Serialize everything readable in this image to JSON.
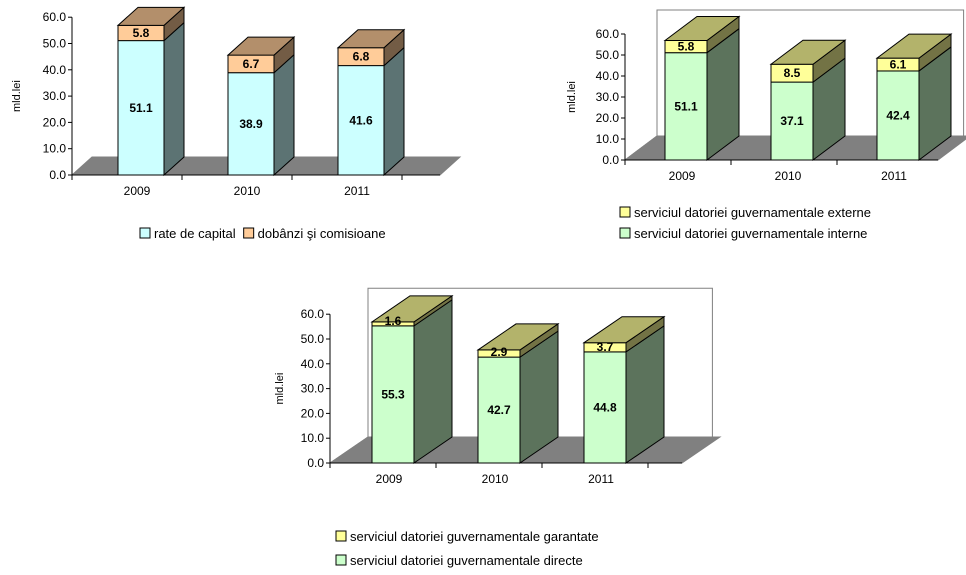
{
  "chart_data": [
    {
      "type": "bar",
      "stacked": true,
      "categories": [
        "2009",
        "2010",
        "2011"
      ],
      "series": [
        {
          "name": "rate de capital",
          "values": [
            51.1,
            38.9,
            41.6
          ],
          "color": "#ccffff"
        },
        {
          "name": "dobânzi şi comisioane",
          "values": [
            5.8,
            6.7,
            6.8
          ],
          "color": "#ffcc99"
        }
      ],
      "ylabel": "mld.lei",
      "ylim": [
        0,
        60
      ],
      "yticks": [
        "0.0",
        "10.0",
        "20.0",
        "30.0",
        "40.0",
        "50.0",
        "60.0"
      ],
      "legend_position": "bottom"
    },
    {
      "type": "bar",
      "stacked": true,
      "categories": [
        "2009",
        "2010",
        "2011"
      ],
      "series": [
        {
          "name": "serviciul datoriei guvernamentale interne",
          "values": [
            51.1,
            37.1,
            42.4
          ],
          "color": "#ccffcc"
        },
        {
          "name": "serviciul datoriei guvernamentale externe",
          "values": [
            5.8,
            8.5,
            6.1
          ],
          "color": "#ffff99"
        }
      ],
      "ylabel": "mld.lei",
      "ylim": [
        0,
        60
      ],
      "yticks": [
        "0.0",
        "10.0",
        "20.0",
        "30.0",
        "40.0",
        "50.0",
        "60.0"
      ],
      "legend_position": "bottom"
    },
    {
      "type": "bar",
      "stacked": true,
      "categories": [
        "2009",
        "2010",
        "2011"
      ],
      "series": [
        {
          "name": "serviciul datoriei guvernamentale directe",
          "values": [
            55.3,
            42.7,
            44.8
          ],
          "color": "#ccffcc"
        },
        {
          "name": "serviciul datoriei guvernamentale garantate",
          "values": [
            1.6,
            2.9,
            3.7
          ],
          "color": "#ffff99"
        }
      ],
      "ylabel": "mld.lei",
      "ylim": [
        0,
        60
      ],
      "yticks": [
        "0.0",
        "10.0",
        "20.0",
        "30.0",
        "40.0",
        "50.0",
        "60.0"
      ],
      "legend_position": "bottom"
    }
  ]
}
